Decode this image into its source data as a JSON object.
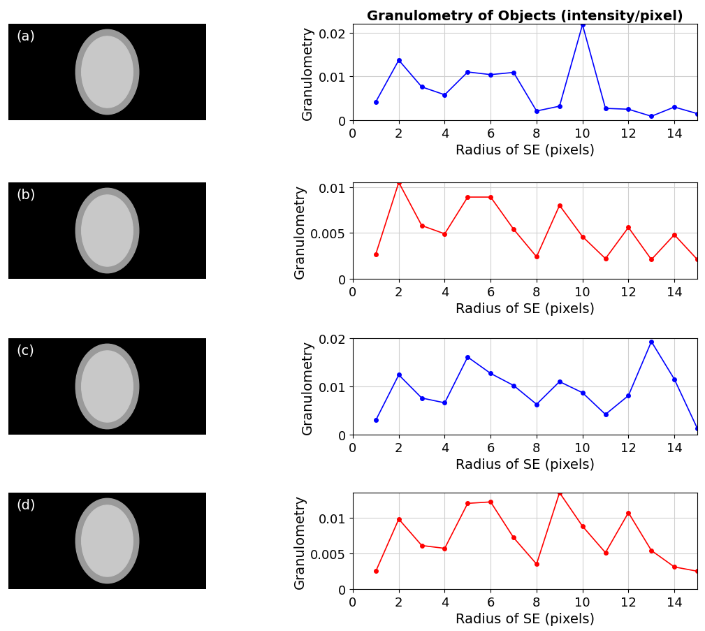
{
  "chart_data": [
    {
      "type": "line",
      "title": "Granulometry of Objects (intensity/pixel)",
      "annotations": [
        "(a)"
      ],
      "x_label": "Radius of SE (pixels)",
      "y_label": "Granulometry",
      "x": [
        1,
        2,
        3,
        4,
        5,
        6,
        7,
        8,
        9,
        10,
        11,
        12,
        13,
        14,
        15
      ],
      "series": [
        {
          "name": "(a)",
          "color": "#0000ff",
          "marker": "o",
          "values": [
            0.0042,
            0.0137,
            0.0076,
            0.0058,
            0.011,
            0.0104,
            0.0109,
            0.0021,
            0.0032,
            0.0218,
            0.0027,
            0.0025,
            0.0009,
            0.003,
            0.0015
          ]
        }
      ],
      "xlim": [
        0,
        15
      ],
      "xticks": [
        0,
        2,
        4,
        6,
        8,
        10,
        12,
        14
      ],
      "ylim": [
        0,
        0.022
      ],
      "yticks": [
        0,
        0.01,
        0.02
      ],
      "grid": true
    },
    {
      "type": "line",
      "annotations": [
        "(b)"
      ],
      "x_label": "Radius of SE (pixels)",
      "y_label": "Granulometry",
      "x": [
        1,
        2,
        3,
        4,
        5,
        6,
        7,
        8,
        9,
        10,
        11,
        12,
        13,
        14,
        15
      ],
      "series": [
        {
          "name": "(b)",
          "color": "#ff0000",
          "marker": "o",
          "values": [
            0.0027,
            0.0105,
            0.0058,
            0.0049,
            0.0089,
            0.0089,
            0.0054,
            0.0024,
            0.008,
            0.0046,
            0.0022,
            0.0056,
            0.0021,
            0.0048,
            0.0021
          ]
        }
      ],
      "xlim": [
        0,
        15
      ],
      "xticks": [
        0,
        2,
        4,
        6,
        8,
        10,
        12,
        14
      ],
      "ylim": [
        0,
        0.0105
      ],
      "yticks": [
        0,
        0.005,
        0.01
      ],
      "grid": true
    },
    {
      "type": "line",
      "annotations": [
        "(c)"
      ],
      "x_label": "Radius of SE (pixels)",
      "y_label": "Granulometry",
      "x": [
        1,
        2,
        3,
        4,
        5,
        6,
        7,
        8,
        9,
        10,
        11,
        12,
        13,
        14,
        15
      ],
      "series": [
        {
          "name": "(c)",
          "color": "#0000ff",
          "marker": "o",
          "values": [
            0.003,
            0.0124,
            0.0076,
            0.0066,
            0.0161,
            0.0127,
            0.0102,
            0.0063,
            0.011,
            0.0087,
            0.0042,
            0.0081,
            0.0193,
            0.0115,
            0.0013
          ]
        }
      ],
      "xlim": [
        0,
        15
      ],
      "xticks": [
        0,
        2,
        4,
        6,
        8,
        10,
        12,
        14
      ],
      "ylim": [
        0,
        0.02
      ],
      "yticks": [
        0,
        0.01,
        0.02
      ],
      "grid": true
    },
    {
      "type": "line",
      "annotations": [
        "(d)"
      ],
      "x_label": "Radius of SE (pixels)",
      "y_label": "Granulometry",
      "x": [
        1,
        2,
        3,
        4,
        5,
        6,
        7,
        8,
        9,
        10,
        11,
        12,
        13,
        14,
        15
      ],
      "series": [
        {
          "name": "(d)",
          "color": "#ff0000",
          "marker": "o",
          "values": [
            0.0025,
            0.0098,
            0.0061,
            0.0057,
            0.012,
            0.0122,
            0.0072,
            0.0035,
            0.0135,
            0.0088,
            0.0051,
            0.0107,
            0.0054,
            0.0031,
            0.0025
          ]
        }
      ],
      "xlim": [
        0,
        15
      ],
      "xticks": [
        0,
        2,
        4,
        6,
        8,
        10,
        12,
        14
      ],
      "ylim": [
        0,
        0.0135
      ],
      "yticks": [
        0,
        0.005,
        0.01
      ],
      "grid": true
    }
  ]
}
